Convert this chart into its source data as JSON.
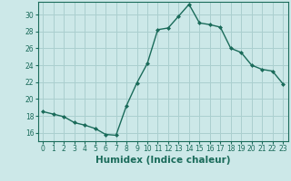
{
  "x": [
    0,
    1,
    2,
    3,
    4,
    5,
    6,
    7,
    8,
    9,
    10,
    11,
    12,
    13,
    14,
    15,
    16,
    17,
    18,
    19,
    20,
    21,
    22,
    23
  ],
  "y": [
    18.5,
    18.2,
    17.9,
    17.2,
    16.9,
    16.5,
    15.8,
    15.7,
    19.2,
    21.9,
    24.2,
    28.2,
    28.4,
    29.8,
    31.2,
    29.0,
    28.8,
    28.5,
    26.0,
    25.5,
    24.0,
    23.5,
    23.3,
    21.8
  ],
  "xlabel": "Humidex (Indice chaleur)",
  "ylim": [
    15.0,
    31.5
  ],
  "xlim": [
    -0.5,
    23.5
  ],
  "yticks": [
    16,
    18,
    20,
    22,
    24,
    26,
    28,
    30
  ],
  "xticks": [
    0,
    1,
    2,
    3,
    4,
    5,
    6,
    7,
    8,
    9,
    10,
    11,
    12,
    13,
    14,
    15,
    16,
    17,
    18,
    19,
    20,
    21,
    22,
    23
  ],
  "line_color": "#1a6b5a",
  "marker": "D",
  "marker_size": 2.0,
  "bg_color": "#cce8e8",
  "grid_color": "#aacfcf",
  "xlabel_fontsize": 7.5,
  "tick_fontsize": 5.5,
  "linewidth": 1.0
}
